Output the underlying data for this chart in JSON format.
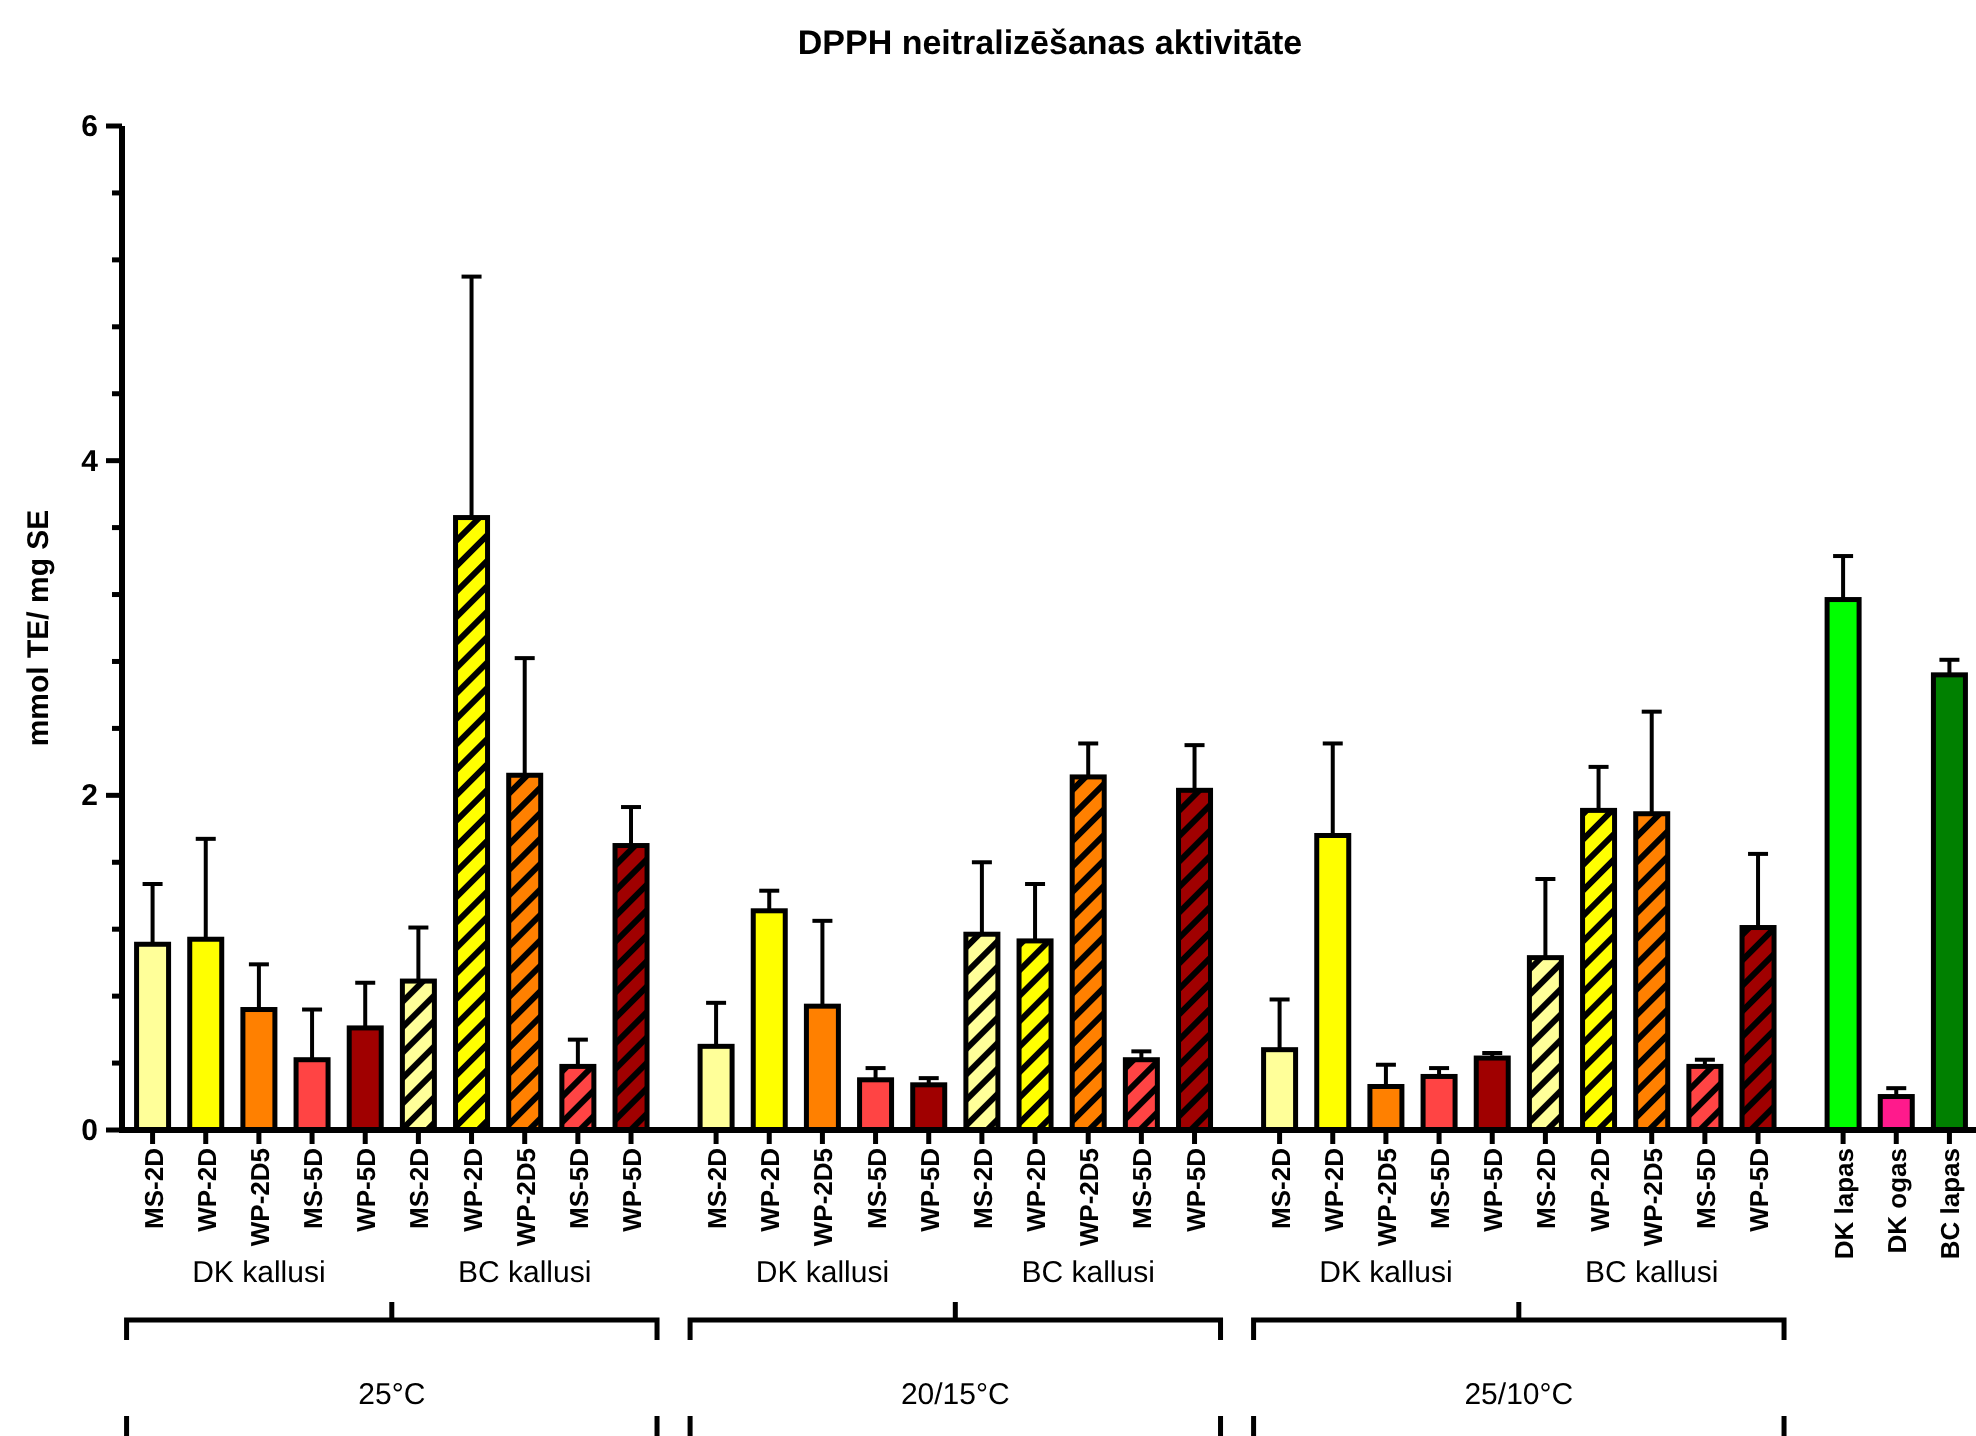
{
  "chart_data": {
    "type": "bar",
    "title": "DPPH neitralizēšanas aktivitāte",
    "ylabel": "mmol TE/ mg SE",
    "categories": [
      "MS-2D",
      "WP-2D",
      "WP-2D5",
      "MS-5D",
      "WP-5D",
      "MS-2D",
      "WP-2D",
      "WP-2D5",
      "MS-5D",
      "WP-5D",
      null,
      "MS-2D",
      "WP-2D",
      "WP-2D5",
      "MS-5D",
      "WP-5D",
      "MS-2D",
      "WP-2D",
      "WP-2D5",
      "MS-5D",
      "WP-5D",
      null,
      "MS-2D",
      "WP-2D",
      "WP-2D5",
      "MS-5D",
      "WP-5D",
      "MS-2D",
      "WP-2D",
      "WP-2D5",
      "MS-5D",
      "WP-5D",
      null,
      "DK lapas",
      "DK ogas",
      "BC lapas"
    ],
    "series": [
      {
        "colors": [
          "#ffff99",
          "#ffff00",
          "#ff8000",
          "#ff4444",
          "#a00000",
          null,
          null,
          null,
          null,
          null,
          null,
          "#ffff99",
          "#ffff00",
          "#ff8000",
          "#ff4444",
          "#a00000",
          null,
          null,
          null,
          null,
          null,
          null,
          "#ffff99",
          "#ffff00",
          "#ff8000",
          "#ff4444",
          "#a00000",
          null,
          null,
          null,
          null,
          null,
          null,
          "#00ff00",
          "#ff1a8c",
          "#008000"
        ],
        "values": [
          1.11,
          1.14,
          0.72,
          0.42,
          0.61,
          null,
          null,
          null,
          null,
          null,
          null,
          0.5,
          1.31,
          0.74,
          0.3,
          0.27,
          null,
          null,
          null,
          null,
          null,
          null,
          0.48,
          1.76,
          0.26,
          0.32,
          0.43,
          null,
          null,
          null,
          null,
          null,
          null,
          3.17,
          0.2,
          2.72
        ],
        "errors": [
          [
            1.11,
            1.47
          ],
          [
            1.14,
            1.74
          ],
          [
            0.72,
            0.99
          ],
          [
            0.42,
            0.72
          ],
          [
            0.61,
            0.88
          ],
          null,
          null,
          null,
          null,
          null,
          null,
          [
            0.5,
            0.76
          ],
          [
            1.31,
            1.43
          ],
          [
            0.74,
            1.25
          ],
          [
            0.3,
            0.37
          ],
          [
            0.27,
            0.31
          ],
          null,
          null,
          null,
          null,
          null,
          null,
          [
            0.48,
            0.78
          ],
          [
            1.76,
            2.31
          ],
          [
            0.26,
            0.39
          ],
          [
            0.32,
            0.37
          ],
          [
            0.43,
            0.46
          ],
          null,
          null,
          null,
          null,
          null,
          null,
          [
            3.17,
            3.43
          ],
          [
            0.2,
            0.25
          ],
          [
            2.72,
            2.81
          ]
        ]
      },
      {
        "colors": [
          null,
          null,
          null,
          null,
          null,
          "#ffff99",
          "#ffff00",
          "#ff8000",
          "#ff4444",
          "#a00000",
          null,
          null,
          null,
          null,
          null,
          null,
          "#ffff99",
          "#ffff00",
          "#ff8000",
          "#ff4444",
          "#a00000",
          null,
          null,
          null,
          null,
          null,
          null,
          "#ffff99",
          "#ffff00",
          "#ff8000",
          "#ff4444",
          "#a00000",
          null,
          null,
          null,
          null
        ],
        "values": [
          null,
          null,
          null,
          null,
          null,
          0.89,
          3.66,
          2.12,
          0.38,
          1.7,
          null,
          null,
          null,
          null,
          null,
          null,
          1.17,
          1.13,
          2.11,
          0.42,
          2.03,
          null,
          null,
          null,
          null,
          null,
          null,
          1.03,
          1.91,
          1.89,
          0.38,
          1.21,
          null,
          null,
          null,
          null
        ],
        "errors": [
          null,
          null,
          null,
          null,
          null,
          [
            0.89,
            1.21
          ],
          [
            3.66,
            5.1
          ],
          [
            2.12,
            2.82
          ],
          [
            0.38,
            0.54
          ],
          [
            1.7,
            1.93
          ],
          null,
          null,
          null,
          null,
          null,
          null,
          [
            1.17,
            1.6
          ],
          [
            1.13,
            1.47
          ],
          [
            2.11,
            2.31
          ],
          [
            0.42,
            0.47
          ],
          [
            2.03,
            2.3
          ],
          null,
          null,
          null,
          null,
          null,
          null,
          [
            1.03,
            1.5
          ],
          [
            1.91,
            2.17
          ],
          [
            1.89,
            2.5
          ],
          [
            0.38,
            0.42
          ],
          [
            1.21,
            1.65
          ],
          null,
          null,
          null,
          null
        ]
      }
    ],
    "ylim": [
      0,
      6
    ],
    "yticks": [
      0,
      {
        "value": 0.4,
        "label": null
      },
      {
        "value": 0.8,
        "label": null
      },
      {
        "value": 1.2,
        "label": null
      },
      {
        "value": 1.6,
        "label": null
      },
      2,
      {
        "value": 2.4,
        "label": null
      },
      {
        "value": 2.8,
        "label": null
      },
      {
        "value": 3.2,
        "label": null
      },
      {
        "value": 3.6,
        "label": null
      },
      4,
      {
        "value": 4.4,
        "label": null
      },
      {
        "value": 4.8,
        "label": null
      },
      {
        "value": 5.2,
        "label": null
      },
      {
        "value": 5.6,
        "label": null
      },
      6
    ],
    "annotations": [
      "DK kallusi",
      "BC kallusi",
      "DK kallusi",
      "BC kallusi",
      "DK kallusi",
      "BC kallusi",
      "25°C",
      "20/15°C",
      "25/10°C"
    ],
    "grid": false
  }
}
